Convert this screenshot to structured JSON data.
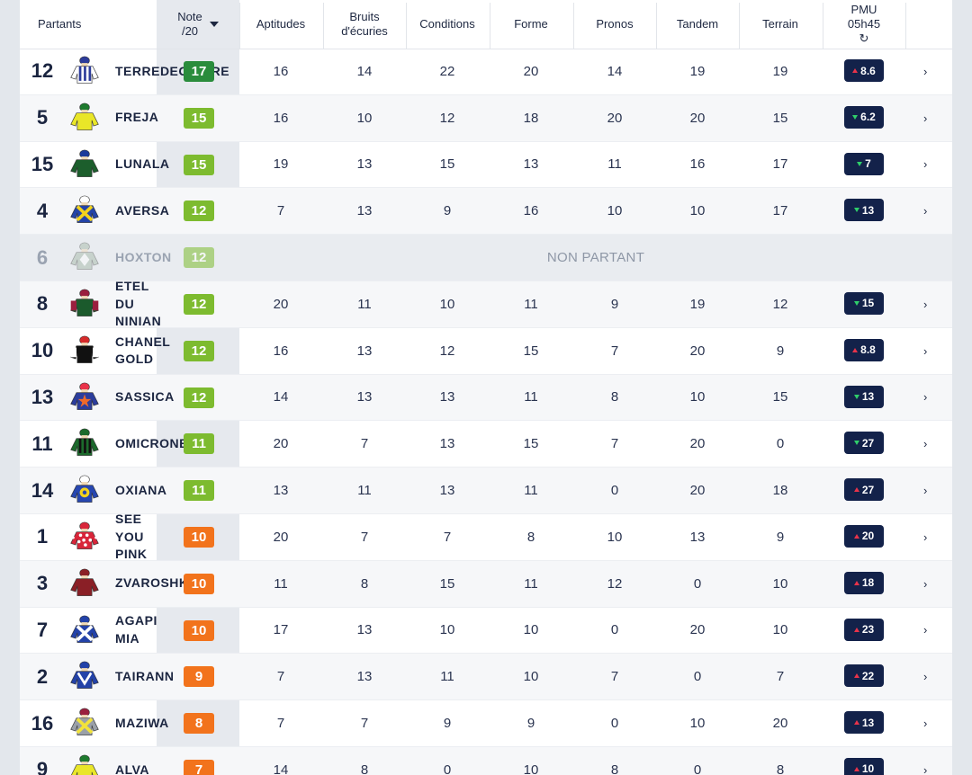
{
  "header": {
    "partants": "Partants",
    "note": "Note\n/20",
    "columns": [
      "Aptitudes",
      "Bruits\nd'écuries",
      "Conditions",
      "Forme",
      "Pronos",
      "Tandem",
      "Terrain"
    ],
    "pmu": "PMU\n05h45",
    "refresh_icon": "refresh-icon",
    "sort_icon": "caret-down-icon"
  },
  "colors": {
    "green_dark": "#2a8c3c",
    "green": "#7dbb2f",
    "orange": "#f2731c",
    "badge_bg": "#13224a",
    "up": "#e8334a",
    "down": "#2fcf6a"
  },
  "rows": [
    {
      "num": "12",
      "name": "TERREDEGLOIRE",
      "note": "17",
      "scores": [
        "16",
        "14",
        "22",
        "20",
        "14",
        "19",
        "19"
      ],
      "odds": "8.6",
      "trend": "up",
      "silk": {
        "body": "#ffffff",
        "pattern": "stripes",
        "accent": "#2d3c9a",
        "cap": "#2d3c9a"
      }
    },
    {
      "num": "5",
      "name": "FREJA",
      "note": "15",
      "scores": [
        "16",
        "10",
        "12",
        "18",
        "20",
        "20",
        "15"
      ],
      "odds": "6.2",
      "trend": "down",
      "silk": {
        "body": "#e9e628",
        "pattern": "plain",
        "accent": "#1e7a2e",
        "cap": "#1e7a2e"
      }
    },
    {
      "num": "15",
      "name": "LUNALA",
      "note": "15",
      "scores": [
        "19",
        "13",
        "15",
        "13",
        "11",
        "16",
        "17"
      ],
      "odds": "7",
      "trend": "down",
      "silk": {
        "body": "#1c5e2c",
        "pattern": "plain",
        "accent": "#1c3a9a",
        "cap": "#1c3a9a"
      }
    },
    {
      "num": "4",
      "name": "AVERSA",
      "note": "12",
      "scores": [
        "7",
        "13",
        "9",
        "16",
        "10",
        "10",
        "17"
      ],
      "odds": "13",
      "trend": "down",
      "silk": {
        "body": "#2343a8",
        "pattern": "cross",
        "accent": "#f2d21c",
        "cap": "#ffffff"
      }
    },
    {
      "num": "6",
      "name": "HOXTON",
      "note": "12",
      "np": "NON PARTANT",
      "silk": {
        "body": "#9fb4a2",
        "pattern": "diamond",
        "accent": "#ffffff",
        "cap": "#9fb4a2"
      }
    },
    {
      "num": "8",
      "name": "ETEL\nDU\nNINIAN",
      "note": "12",
      "scores": [
        "20",
        "11",
        "10",
        "11",
        "9",
        "19",
        "12"
      ],
      "odds": "15",
      "trend": "down",
      "silk": {
        "body": "#1b5a2c",
        "pattern": "sleeves",
        "accent": "#9a1f3e",
        "cap": "#9a1f3e"
      }
    },
    {
      "num": "10",
      "name": "CHANEL\nGOLD",
      "note": "12",
      "scores": [
        "16",
        "13",
        "12",
        "15",
        "7",
        "20",
        "9"
      ],
      "odds": "8.8",
      "trend": "up",
      "silk": {
        "body": "#111111",
        "pattern": "sleeves",
        "accent": "#ffffff",
        "cap": "#d62b2b"
      }
    },
    {
      "num": "13",
      "name": "SASSICA",
      "note": "12",
      "scores": [
        "14",
        "13",
        "13",
        "11",
        "8",
        "10",
        "15"
      ],
      "odds": "13",
      "trend": "down",
      "silk": {
        "body": "#2c3d9c",
        "pattern": "star",
        "accent": "#f06a2a",
        "cap": "#e9334a"
      }
    },
    {
      "num": "11",
      "name": "OMICRONE",
      "note": "11",
      "scores": [
        "20",
        "7",
        "13",
        "15",
        "7",
        "20",
        "0"
      ],
      "odds": "27",
      "trend": "down",
      "silk": {
        "body": "#1c6a2c",
        "pattern": "stripes",
        "accent": "#111111",
        "cap": "#1c6a2c"
      }
    },
    {
      "num": "14",
      "name": "OXIANA",
      "note": "11",
      "scores": [
        "13",
        "11",
        "13",
        "11",
        "0",
        "20",
        "18"
      ],
      "odds": "27",
      "trend": "up",
      "silk": {
        "body": "#2646b0",
        "pattern": "circle",
        "accent": "#f2d21c",
        "cap": "#ffffff"
      }
    },
    {
      "num": "1",
      "name": "SEE\nYOU\nPINK",
      "note": "10",
      "scores": [
        "20",
        "7",
        "7",
        "8",
        "10",
        "13",
        "9"
      ],
      "odds": "20",
      "trend": "up",
      "silk": {
        "body": "#d8263a",
        "pattern": "dots",
        "accent": "#ffffff",
        "cap": "#d8263a"
      }
    },
    {
      "num": "3",
      "name": "ZVAROSHKA",
      "note": "10",
      "scores": [
        "11",
        "8",
        "15",
        "11",
        "12",
        "0",
        "10"
      ],
      "odds": "18",
      "trend": "up",
      "silk": {
        "body": "#8a1f26",
        "pattern": "plain",
        "accent": "#8a1f26",
        "cap": "#8a1f26"
      }
    },
    {
      "num": "7",
      "name": "AGAPI\nMIA",
      "note": "10",
      "scores": [
        "17",
        "13",
        "10",
        "10",
        "0",
        "20",
        "10"
      ],
      "odds": "23",
      "trend": "up",
      "silk": {
        "body": "#2342a8",
        "pattern": "cross",
        "accent": "#ffffff",
        "cap": "#2342a8"
      }
    },
    {
      "num": "2",
      "name": "TAIRANN",
      "note": "9",
      "scores": [
        "7",
        "13",
        "11",
        "10",
        "7",
        "0",
        "7"
      ],
      "odds": "22",
      "trend": "up",
      "silk": {
        "body": "#2342a8",
        "pattern": "chevron",
        "accent": "#ffffff",
        "cap": "#2342a8"
      }
    },
    {
      "num": "16",
      "name": "MAZIWA",
      "note": "8",
      "scores": [
        "7",
        "7",
        "9",
        "9",
        "0",
        "10",
        "20"
      ],
      "odds": "13",
      "trend": "up",
      "silk": {
        "body": "#9aa0a8",
        "pattern": "cross",
        "accent": "#f2e33a",
        "cap": "#9a1f3e"
      }
    },
    {
      "num": "9",
      "name": "ALVA",
      "note": "7",
      "scores": [
        "14",
        "8",
        "0",
        "10",
        "8",
        "0",
        "8"
      ],
      "odds": "10",
      "trend": "up",
      "silk": {
        "body": "#e9e628",
        "pattern": "plain",
        "accent": "#1e7a2e",
        "cap": "#1e7a2e"
      }
    }
  ]
}
